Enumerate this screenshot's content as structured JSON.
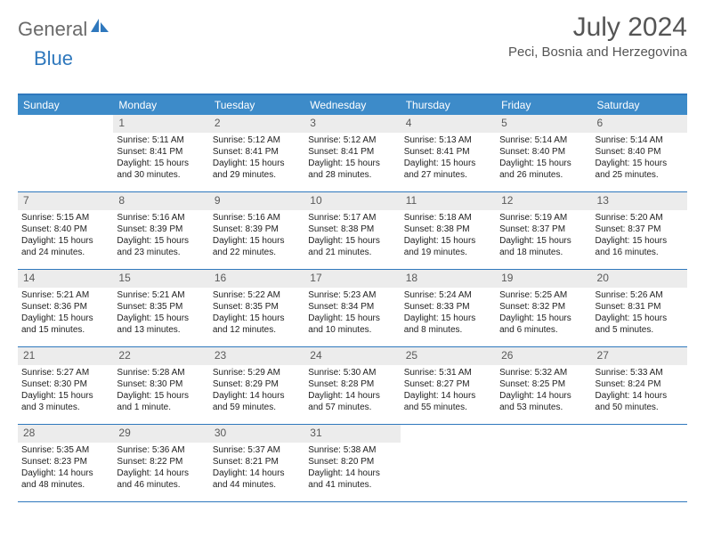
{
  "brand": {
    "part1": "General",
    "part2": "Blue"
  },
  "title": {
    "month": "July 2024",
    "location": "Peci, Bosnia and Herzegovina"
  },
  "colors": {
    "accent": "#3d8bc9",
    "accent_border": "#2f78bd",
    "daynum_bg": "#ececec",
    "text": "#333333",
    "muted": "#6a6a6a"
  },
  "weekdays": [
    "Sunday",
    "Monday",
    "Tuesday",
    "Wednesday",
    "Thursday",
    "Friday",
    "Saturday"
  ],
  "weeks": [
    [
      null,
      {
        "n": "1",
        "sr": "Sunrise: 5:11 AM",
        "ss": "Sunset: 8:41 PM",
        "dl": "Daylight: 15 hours and 30 minutes."
      },
      {
        "n": "2",
        "sr": "Sunrise: 5:12 AM",
        "ss": "Sunset: 8:41 PM",
        "dl": "Daylight: 15 hours and 29 minutes."
      },
      {
        "n": "3",
        "sr": "Sunrise: 5:12 AM",
        "ss": "Sunset: 8:41 PM",
        "dl": "Daylight: 15 hours and 28 minutes."
      },
      {
        "n": "4",
        "sr": "Sunrise: 5:13 AM",
        "ss": "Sunset: 8:41 PM",
        "dl": "Daylight: 15 hours and 27 minutes."
      },
      {
        "n": "5",
        "sr": "Sunrise: 5:14 AM",
        "ss": "Sunset: 8:40 PM",
        "dl": "Daylight: 15 hours and 26 minutes."
      },
      {
        "n": "6",
        "sr": "Sunrise: 5:14 AM",
        "ss": "Sunset: 8:40 PM",
        "dl": "Daylight: 15 hours and 25 minutes."
      }
    ],
    [
      {
        "n": "7",
        "sr": "Sunrise: 5:15 AM",
        "ss": "Sunset: 8:40 PM",
        "dl": "Daylight: 15 hours and 24 minutes."
      },
      {
        "n": "8",
        "sr": "Sunrise: 5:16 AM",
        "ss": "Sunset: 8:39 PM",
        "dl": "Daylight: 15 hours and 23 minutes."
      },
      {
        "n": "9",
        "sr": "Sunrise: 5:16 AM",
        "ss": "Sunset: 8:39 PM",
        "dl": "Daylight: 15 hours and 22 minutes."
      },
      {
        "n": "10",
        "sr": "Sunrise: 5:17 AM",
        "ss": "Sunset: 8:38 PM",
        "dl": "Daylight: 15 hours and 21 minutes."
      },
      {
        "n": "11",
        "sr": "Sunrise: 5:18 AM",
        "ss": "Sunset: 8:38 PM",
        "dl": "Daylight: 15 hours and 19 minutes."
      },
      {
        "n": "12",
        "sr": "Sunrise: 5:19 AM",
        "ss": "Sunset: 8:37 PM",
        "dl": "Daylight: 15 hours and 18 minutes."
      },
      {
        "n": "13",
        "sr": "Sunrise: 5:20 AM",
        "ss": "Sunset: 8:37 PM",
        "dl": "Daylight: 15 hours and 16 minutes."
      }
    ],
    [
      {
        "n": "14",
        "sr": "Sunrise: 5:21 AM",
        "ss": "Sunset: 8:36 PM",
        "dl": "Daylight: 15 hours and 15 minutes."
      },
      {
        "n": "15",
        "sr": "Sunrise: 5:21 AM",
        "ss": "Sunset: 8:35 PM",
        "dl": "Daylight: 15 hours and 13 minutes."
      },
      {
        "n": "16",
        "sr": "Sunrise: 5:22 AM",
        "ss": "Sunset: 8:35 PM",
        "dl": "Daylight: 15 hours and 12 minutes."
      },
      {
        "n": "17",
        "sr": "Sunrise: 5:23 AM",
        "ss": "Sunset: 8:34 PM",
        "dl": "Daylight: 15 hours and 10 minutes."
      },
      {
        "n": "18",
        "sr": "Sunrise: 5:24 AM",
        "ss": "Sunset: 8:33 PM",
        "dl": "Daylight: 15 hours and 8 minutes."
      },
      {
        "n": "19",
        "sr": "Sunrise: 5:25 AM",
        "ss": "Sunset: 8:32 PM",
        "dl": "Daylight: 15 hours and 6 minutes."
      },
      {
        "n": "20",
        "sr": "Sunrise: 5:26 AM",
        "ss": "Sunset: 8:31 PM",
        "dl": "Daylight: 15 hours and 5 minutes."
      }
    ],
    [
      {
        "n": "21",
        "sr": "Sunrise: 5:27 AM",
        "ss": "Sunset: 8:30 PM",
        "dl": "Daylight: 15 hours and 3 minutes."
      },
      {
        "n": "22",
        "sr": "Sunrise: 5:28 AM",
        "ss": "Sunset: 8:30 PM",
        "dl": "Daylight: 15 hours and 1 minute."
      },
      {
        "n": "23",
        "sr": "Sunrise: 5:29 AM",
        "ss": "Sunset: 8:29 PM",
        "dl": "Daylight: 14 hours and 59 minutes."
      },
      {
        "n": "24",
        "sr": "Sunrise: 5:30 AM",
        "ss": "Sunset: 8:28 PM",
        "dl": "Daylight: 14 hours and 57 minutes."
      },
      {
        "n": "25",
        "sr": "Sunrise: 5:31 AM",
        "ss": "Sunset: 8:27 PM",
        "dl": "Daylight: 14 hours and 55 minutes."
      },
      {
        "n": "26",
        "sr": "Sunrise: 5:32 AM",
        "ss": "Sunset: 8:25 PM",
        "dl": "Daylight: 14 hours and 53 minutes."
      },
      {
        "n": "27",
        "sr": "Sunrise: 5:33 AM",
        "ss": "Sunset: 8:24 PM",
        "dl": "Daylight: 14 hours and 50 minutes."
      }
    ],
    [
      {
        "n": "28",
        "sr": "Sunrise: 5:35 AM",
        "ss": "Sunset: 8:23 PM",
        "dl": "Daylight: 14 hours and 48 minutes."
      },
      {
        "n": "29",
        "sr": "Sunrise: 5:36 AM",
        "ss": "Sunset: 8:22 PM",
        "dl": "Daylight: 14 hours and 46 minutes."
      },
      {
        "n": "30",
        "sr": "Sunrise: 5:37 AM",
        "ss": "Sunset: 8:21 PM",
        "dl": "Daylight: 14 hours and 44 minutes."
      },
      {
        "n": "31",
        "sr": "Sunrise: 5:38 AM",
        "ss": "Sunset: 8:20 PM",
        "dl": "Daylight: 14 hours and 41 minutes."
      },
      null,
      null,
      null
    ]
  ]
}
